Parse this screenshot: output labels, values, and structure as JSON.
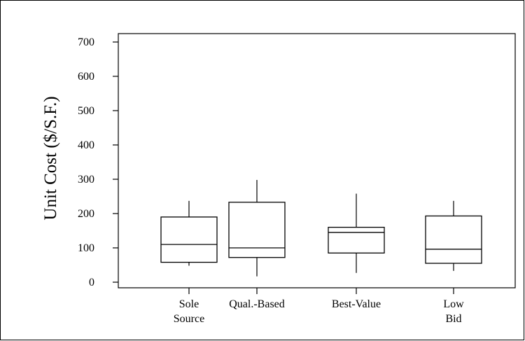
{
  "chart_data": {
    "type": "boxplot",
    "title": "",
    "xlabel": "",
    "ylabel": "Unit Cost ($/S.F.)",
    "ylim": [
      0,
      700
    ],
    "yticks": [
      0,
      100,
      200,
      300,
      400,
      500,
      600,
      700
    ],
    "grid": false,
    "categories": [
      {
        "lines": [
          "Sole",
          "Source"
        ],
        "min": 48,
        "q1": 58,
        "median": 110,
        "q3": 190,
        "max": 237
      },
      {
        "lines": [
          "Qual.-Based"
        ],
        "min": 17,
        "q1": 72,
        "median": 100,
        "q3": 233,
        "max": 298
      },
      {
        "lines": [
          "Best-Value"
        ],
        "min": 27,
        "q1": 85,
        "median": 145,
        "q3": 160,
        "max": 258
      },
      {
        "lines": [
          "Low",
          "Bid"
        ],
        "min": 33,
        "q1": 55,
        "median": 96,
        "q3": 193,
        "max": 237
      }
    ]
  }
}
